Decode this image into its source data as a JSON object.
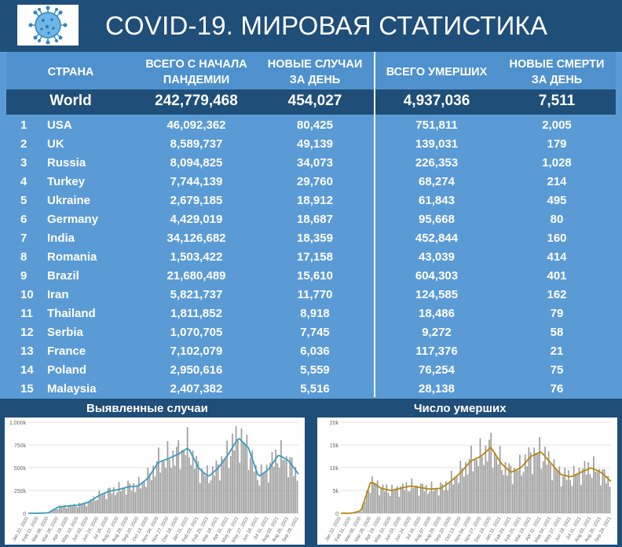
{
  "header": {
    "title": "COVID-19. МИРОВАЯ СТАТИСТИКА",
    "logo_icon": "virus-icon"
  },
  "table": {
    "columns": [
      "СТРАНА",
      "ВСЕГО С НАЧАЛА ПАНДЕМИИ",
      "НОВЫЕ СЛУЧАИ ЗА ДЕНЬ",
      "ВСЕГО УМЕРШИХ",
      "НОВЫЕ СМЕРТИ ЗА ДЕНЬ"
    ],
    "column_lines": [
      [
        "СТРАНА"
      ],
      [
        "ВСЕГО С НАЧАЛА",
        "ПАНДЕМИИ"
      ],
      [
        "НОВЫЕ СЛУЧАИ",
        "ЗА ДЕНЬ"
      ],
      [
        "ВСЕГО УМЕРШИХ"
      ],
      [
        "НОВЫЕ СМЕРТИ",
        "ЗА ДЕНЬ"
      ]
    ],
    "world": {
      "country": "World",
      "total_cases": "242,779,468",
      "new_cases": "454,027",
      "total_deaths": "4,937,036",
      "new_deaths": "7,511"
    },
    "rows": [
      {
        "rank": "1",
        "country": "USA",
        "total_cases": "46,092,362",
        "new_cases": "80,425",
        "total_deaths": "751,811",
        "new_deaths": "2,005"
      },
      {
        "rank": "2",
        "country": "UK",
        "total_cases": "8,589,737",
        "new_cases": "49,139",
        "total_deaths": "139,031",
        "new_deaths": "179"
      },
      {
        "rank": "3",
        "country": "Russia",
        "total_cases": "8,094,825",
        "new_cases": "34,073",
        "total_deaths": "226,353",
        "new_deaths": "1,028"
      },
      {
        "rank": "4",
        "country": "Turkey",
        "total_cases": "7,744,139",
        "new_cases": "29,760",
        "total_deaths": "68,274",
        "new_deaths": "214"
      },
      {
        "rank": "5",
        "country": "Ukraine",
        "total_cases": "2,679,185",
        "new_cases": "18,912",
        "total_deaths": "61,843",
        "new_deaths": "495"
      },
      {
        "rank": "6",
        "country": "Germany",
        "total_cases": "4,429,019",
        "new_cases": "18,687",
        "total_deaths": "95,668",
        "new_deaths": "80"
      },
      {
        "rank": "7",
        "country": "India",
        "total_cases": "34,126,682",
        "new_cases": "18,359",
        "total_deaths": "452,844",
        "new_deaths": "160"
      },
      {
        "rank": "8",
        "country": "Romania",
        "total_cases": "1,503,422",
        "new_cases": "17,158",
        "total_deaths": "43,039",
        "new_deaths": "414"
      },
      {
        "rank": "9",
        "country": "Brazil",
        "total_cases": "21,680,489",
        "new_cases": "15,610",
        "total_deaths": "604,303",
        "new_deaths": "401"
      },
      {
        "rank": "10",
        "country": "Iran",
        "total_cases": "5,821,737",
        "new_cases": "11,770",
        "total_deaths": "124,585",
        "new_deaths": "162"
      },
      {
        "rank": "11",
        "country": "Thailand",
        "total_cases": "1,811,852",
        "new_cases": "8,918",
        "total_deaths": "18,486",
        "new_deaths": "79"
      },
      {
        "rank": "12",
        "country": "Serbia",
        "total_cases": "1,070,705",
        "new_cases": "7,745",
        "total_deaths": "9,272",
        "new_deaths": "58"
      },
      {
        "rank": "13",
        "country": "France",
        "total_cases": "7,102,079",
        "new_cases": "6,036",
        "total_deaths": "117,376",
        "new_deaths": "21"
      },
      {
        "rank": "14",
        "country": "Poland",
        "total_cases": "2,950,616",
        "new_cases": "5,559",
        "total_deaths": "76,254",
        "new_deaths": "75"
      },
      {
        "rank": "15",
        "country": "Malaysia",
        "total_cases": "2,407,382",
        "new_cases": "5,516",
        "total_deaths": "28,138",
        "new_deaths": "76"
      }
    ]
  },
  "colors": {
    "header_bg": "#1f4e79",
    "table_bg": "#5b9bd5",
    "cases_line": "#3a9bc1",
    "deaths_line": "#b8860b",
    "bars": "#9e9e9e"
  },
  "chart_data": [
    {
      "type": "bar",
      "title": "Выявленные случаи",
      "overlay": "line (7-day average)",
      "ylim": [
        0,
        1000000
      ],
      "yticks": [
        "0",
        "250k",
        "500k",
        "750k",
        "1,000k"
      ],
      "xticks": [
        "Jan 22, 2020",
        "Feb 11, 2020",
        "Mar 06, 2020",
        "Mar 26, 2020",
        "Apr 19, 2020",
        "May 10, 2020",
        "Jun 03, 2020",
        "Jun 24, 2020",
        "Jul 16, 2020",
        "Aug 07, 2020",
        "Aug 29, 2020",
        "Sep 20, 2020",
        "Oct 13, 2020",
        "Nov 04, 2020",
        "Nov 27, 2020",
        "Dec 19, 2020",
        "Jan 11, 2021",
        "Feb 03, 2021",
        "Feb 25, 2021",
        "Mar 19, 2021",
        "Apr 11, 2021",
        "May 04, 2021",
        "May 27, 2021",
        "Jun 18, 2021",
        "Jul 11, 2021",
        "Aug 03, 2021",
        "Aug 26, 2021",
        "Sep 29, 2021"
      ],
      "values": [
        0,
        0,
        5000,
        70000,
        80000,
        90000,
        120000,
        190000,
        240000,
        260000,
        290000,
        300000,
        390000,
        560000,
        600000,
        650000,
        720000,
        500000,
        400000,
        500000,
        650000,
        830000,
        720000,
        400000,
        480000,
        640000,
        580000,
        430000
      ],
      "grid": true
    },
    {
      "type": "bar",
      "title": "Число умерших",
      "overlay": "line (7-day average)",
      "ylim": [
        0,
        20000
      ],
      "yticks": [
        "0",
        "5k",
        "10k",
        "15k",
        "20k"
      ],
      "xticks": [
        "Jan 22, 2020",
        "Feb 11, 2020",
        "Mar 06, 2020",
        "Mar 26, 2020",
        "Apr 19, 2020",
        "May 10, 2020",
        "Jun 03, 2020",
        "Jun 24, 2020",
        "Jul 16, 2020",
        "Aug 07, 2020",
        "Aug 29, 2020",
        "Sep 20, 2020",
        "Oct 13, 2020",
        "Nov 04, 2020",
        "Nov 27, 2020",
        "Dec 19, 2020",
        "Jan 11, 2021",
        "Feb 03, 2021",
        "Feb 25, 2021",
        "Mar 19, 2021",
        "Apr 11, 2021",
        "May 04, 2021",
        "May 27, 2021",
        "Jun 18, 2021",
        "Jul 11, 2021",
        "Aug 03, 2021",
        "Aug 26, 2021",
        "Sep 29, 2021"
      ],
      "values": [
        0,
        0,
        500,
        7000,
        5500,
        5000,
        5500,
        6000,
        5600,
        5300,
        5500,
        7000,
        9000,
        11500,
        12500,
        14500,
        11000,
        9000,
        10000,
        12500,
        13500,
        11000,
        8500,
        8000,
        9000,
        10000,
        9000,
        7000
      ],
      "grid": true
    }
  ]
}
